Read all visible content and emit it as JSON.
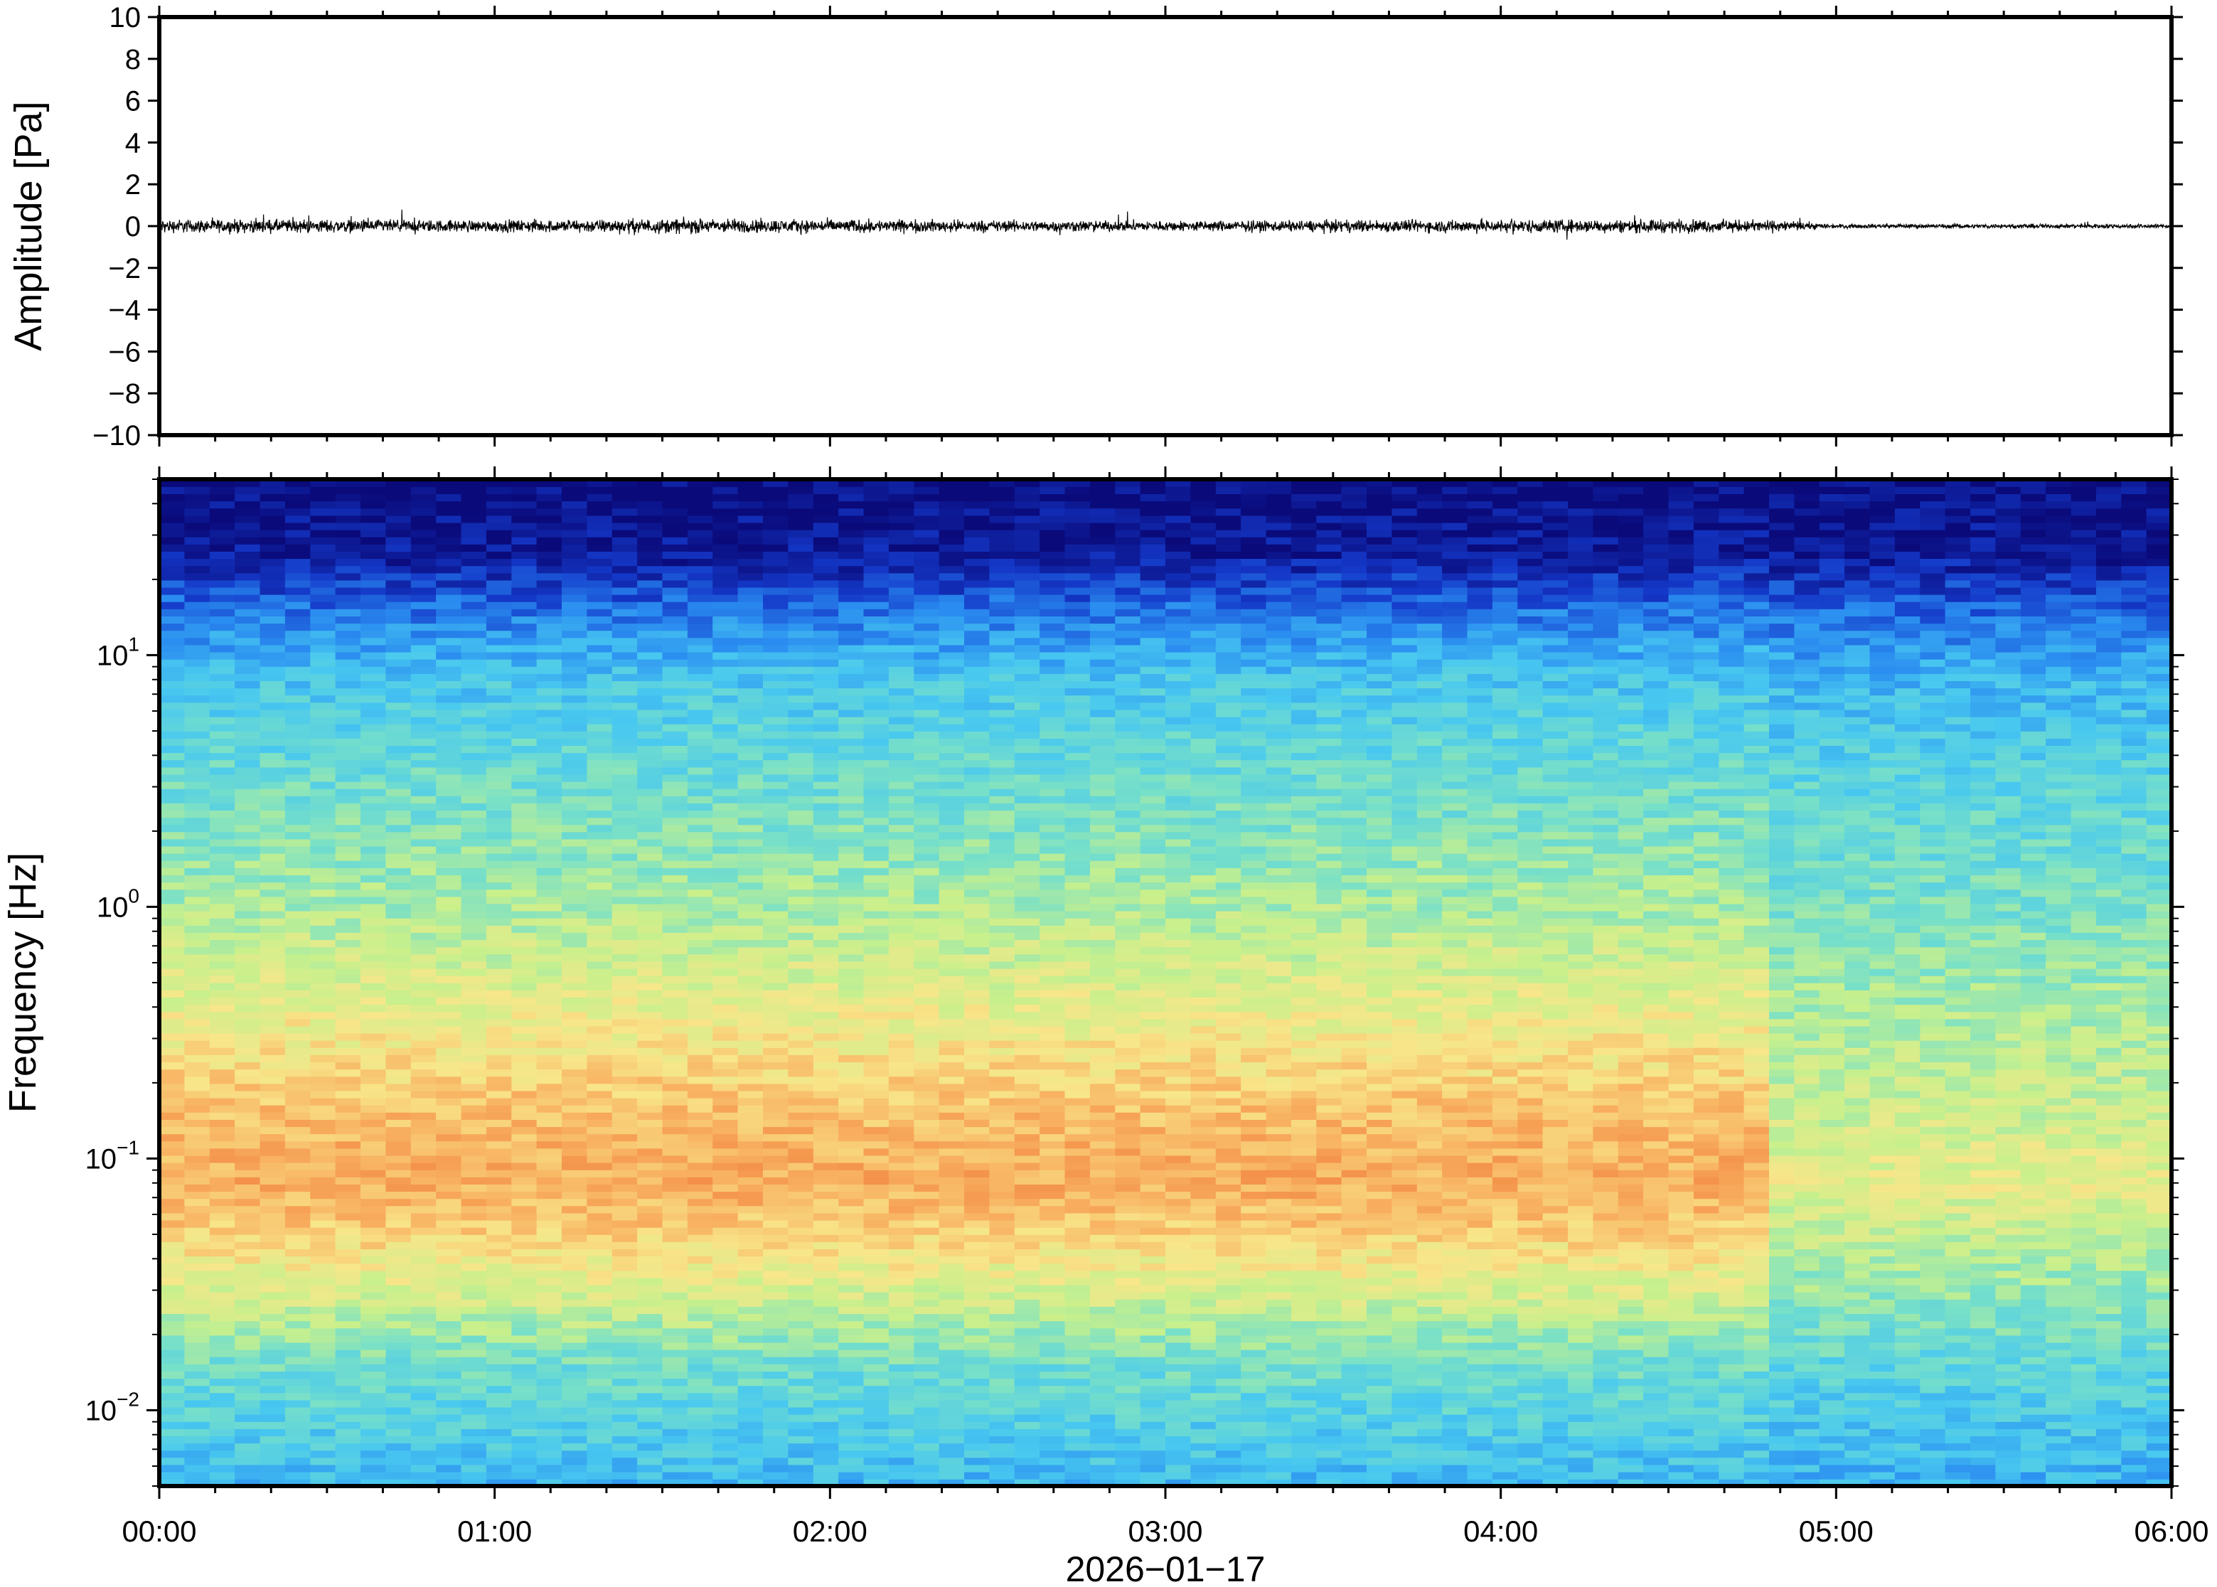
{
  "chart_data": [
    {
      "type": "line",
      "title": "",
      "xlabel": "",
      "ylabel": "Amplitude [Pa]",
      "ylim": [
        -10,
        10
      ],
      "y_ticks": [
        10,
        8,
        6,
        4,
        2,
        0,
        -2,
        -4,
        -6,
        -8,
        -10
      ],
      "y_tick_labels": [
        "10",
        "8",
        "6",
        "4",
        "2",
        "0",
        "−2",
        "−4",
        "−6",
        "−8",
        "−10"
      ],
      "x_range_hours": [
        0,
        6
      ],
      "series": [
        {
          "description_hint": "noise envelope",
          "envelope": {
            "hours": [
              0.0,
              0.5,
              1.0,
              1.5,
              2.0,
              2.5,
              3.0,
              3.5,
              4.0,
              4.5,
              4.8,
              5.0,
              5.5,
              6.0
            ],
            "half_amplitude_pa": [
              0.45,
              0.45,
              0.4,
              0.5,
              0.45,
              0.4,
              0.35,
              0.4,
              0.45,
              0.45,
              0.4,
              0.15,
              0.15,
              0.15
            ]
          }
        }
      ],
      "grid": false
    },
    {
      "type": "heatmap",
      "title": "",
      "xlabel": "2026−01−17",
      "ylabel": "Frequency [Hz]",
      "y_scale": "log",
      "ylim": [
        0.005,
        50
      ],
      "y_ticks": [
        0.01,
        0.1,
        1,
        10
      ],
      "y_tick_labels": [
        {
          "base": "10",
          "exp": "−2"
        },
        {
          "base": "10",
          "exp": "−1"
        },
        {
          "base": "10",
          "exp": "0"
        },
        {
          "base": "10",
          "exp": "1"
        }
      ],
      "x_ticks_hours": [
        0,
        1,
        2,
        3,
        4,
        5,
        6
      ],
      "x_tick_labels": [
        "00:00",
        "01:00",
        "02:00",
        "03:00",
        "04:00",
        "05:00",
        "06:00"
      ],
      "colormap": [
        "#0a0a7a",
        "#1438c8",
        "#2a8cf0",
        "#48c8f0",
        "#78e0c8",
        "#c8f08c",
        "#f8e68a",
        "#f8b060",
        "#f07838"
      ],
      "level_profile": {
        "freq_hz": [
          50,
          25,
          15,
          8,
          3,
          1,
          0.4,
          0.15,
          0.08,
          0.05,
          0.025,
          0.015,
          0.005
        ],
        "level_before_4_8h": [
          0.0,
          0.05,
          0.22,
          0.38,
          0.48,
          0.58,
          0.7,
          0.84,
          0.88,
          0.8,
          0.62,
          0.48,
          0.34
        ],
        "level_after_4_8h": [
          0.0,
          0.05,
          0.2,
          0.34,
          0.44,
          0.5,
          0.58,
          0.64,
          0.7,
          0.62,
          0.52,
          0.44,
          0.32
        ]
      },
      "grid": false
    }
  ]
}
